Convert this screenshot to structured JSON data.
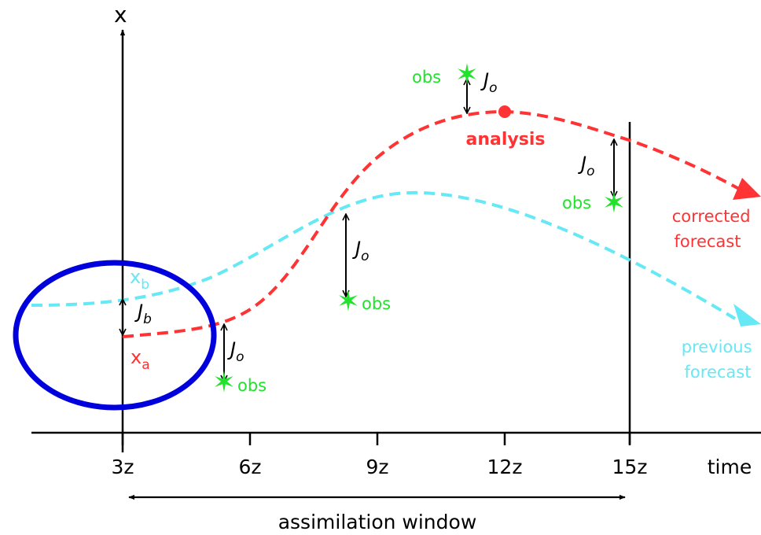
{
  "axes": {
    "y_label": "x",
    "x_label": "time",
    "ticks": [
      "3z",
      "6z",
      "9z",
      "12z",
      "15z"
    ]
  },
  "window": {
    "label": "assimilation window"
  },
  "labels": {
    "xb": "x",
    "xb_sub": "b",
    "xa": "x",
    "xa_sub": "a",
    "analysis": "analysis",
    "corrected_1": "corrected",
    "corrected_2": "forecast",
    "previous_1": "previous",
    "previous_2": "forecast",
    "jb": "J",
    "jb_sub": "b",
    "jo": "J",
    "jo_sub": "o",
    "obs": "obs"
  },
  "colors": {
    "axis": "#000000",
    "corrected": "#ff3333",
    "previous": "#66e8f5",
    "observation": "#22e22e",
    "highlight": "#0000dd"
  },
  "icons": {
    "observation": "star-icon",
    "mismatch": "double-arrow-icon",
    "analysis_point": "dot-icon"
  }
}
